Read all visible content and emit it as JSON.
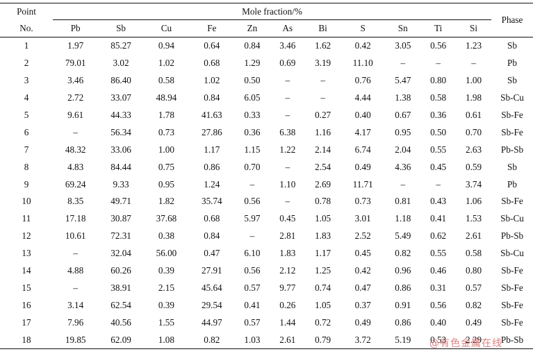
{
  "table": {
    "header": {
      "point": "Point",
      "no": "No.",
      "mole_fraction": "Mole fraction/%",
      "phase": "Phase",
      "elements": [
        "Pb",
        "Sb",
        "Cu",
        "Fe",
        "Zn",
        "As",
        "Bi",
        "S",
        "Sn",
        "Ti",
        "Si"
      ]
    },
    "rows": [
      {
        "no": "1",
        "values": [
          "1.97",
          "85.27",
          "0.94",
          "0.64",
          "0.84",
          "3.46",
          "1.62",
          "0.42",
          "3.05",
          "0.56",
          "1.23"
        ],
        "phase": "Sb"
      },
      {
        "no": "2",
        "values": [
          "79.01",
          "3.02",
          "1.02",
          "0.68",
          "1.29",
          "0.69",
          "3.19",
          "11.10",
          "–",
          "–",
          "–"
        ],
        "phase": "Pb"
      },
      {
        "no": "3",
        "values": [
          "3.46",
          "86.40",
          "0.58",
          "1.02",
          "0.50",
          "–",
          "–",
          "0.76",
          "5.47",
          "0.80",
          "1.00"
        ],
        "phase": "Sb"
      },
      {
        "no": "4",
        "values": [
          "2.72",
          "33.07",
          "48.94",
          "0.84",
          "6.05",
          "–",
          "–",
          "4.44",
          "1.38",
          "0.58",
          "1.98"
        ],
        "phase": "Sb-Cu"
      },
      {
        "no": "5",
        "values": [
          "9.61",
          "44.33",
          "1.78",
          "41.63",
          "0.33",
          "–",
          "0.27",
          "0.40",
          "0.67",
          "0.36",
          "0.61"
        ],
        "phase": "Sb-Fe"
      },
      {
        "no": "6",
        "values": [
          "–",
          "56.34",
          "0.73",
          "27.86",
          "0.36",
          "6.38",
          "1.16",
          "4.17",
          "0.95",
          "0.50",
          "0.70"
        ],
        "phase": "Sb-Fe"
      },
      {
        "no": "7",
        "values": [
          "48.32",
          "33.06",
          "1.00",
          "1.17",
          "1.15",
          "1.22",
          "2.14",
          "6.74",
          "2.04",
          "0.55",
          "2.63"
        ],
        "phase": "Pb-Sb"
      },
      {
        "no": "8",
        "values": [
          "4.83",
          "84.44",
          "0.75",
          "0.86",
          "0.70",
          "–",
          "2.54",
          "0.49",
          "4.36",
          "0.45",
          "0.59"
        ],
        "phase": "Sb"
      },
      {
        "no": "9",
        "values": [
          "69.24",
          "9.33",
          "0.95",
          "1.24",
          "–",
          "1.10",
          "2.69",
          "11.71",
          "–",
          "–",
          "3.74"
        ],
        "phase": "Pb"
      },
      {
        "no": "10",
        "values": [
          "8.35",
          "49.71",
          "1.82",
          "35.74",
          "0.56",
          "–",
          "0.78",
          "0.73",
          "0.81",
          "0.43",
          "1.06"
        ],
        "phase": "Sb-Fe"
      },
      {
        "no": "11",
        "values": [
          "17.18",
          "30.87",
          "37.68",
          "0.68",
          "5.97",
          "0.45",
          "1.05",
          "3.01",
          "1.18",
          "0.41",
          "1.53"
        ],
        "phase": "Sb-Cu"
      },
      {
        "no": "12",
        "values": [
          "10.61",
          "72.31",
          "0.38",
          "0.84",
          "–",
          "2.81",
          "1.83",
          "2.52",
          "5.49",
          "0.62",
          "2.61"
        ],
        "phase": "Pb-Sb"
      },
      {
        "no": "13",
        "values": [
          "–",
          "32.04",
          "56.00",
          "0.47",
          "6.10",
          "1.83",
          "1.17",
          "0.45",
          "0.82",
          "0.55",
          "0.58"
        ],
        "phase": "Sb-Cu"
      },
      {
        "no": "14",
        "values": [
          "4.88",
          "60.26",
          "0.39",
          "27.91",
          "0.56",
          "2.12",
          "1.25",
          "0.42",
          "0.96",
          "0.46",
          "0.80"
        ],
        "phase": "Sb-Fe"
      },
      {
        "no": "15",
        "values": [
          "–",
          "38.91",
          "2.15",
          "45.64",
          "0.57",
          "9.77",
          "0.74",
          "0.47",
          "0.86",
          "0.31",
          "0.57"
        ],
        "phase": "Sb-Fe"
      },
      {
        "no": "16",
        "values": [
          "3.14",
          "62.54",
          "0.39",
          "29.54",
          "0.41",
          "0.26",
          "1.05",
          "0.37",
          "0.91",
          "0.56",
          "0.82"
        ],
        "phase": "Sb-Fe"
      },
      {
        "no": "17",
        "values": [
          "7.96",
          "40.56",
          "1.55",
          "44.97",
          "0.57",
          "1.44",
          "0.72",
          "0.49",
          "0.86",
          "0.40",
          "0.49"
        ],
        "phase": "Sb-Fe"
      },
      {
        "no": "18",
        "values": [
          "19.85",
          "62.09",
          "1.08",
          "0.82",
          "1.03",
          "2.61",
          "0.79",
          "3.72",
          "5.19",
          "0.53",
          "2.29"
        ],
        "phase": "Pb-Sb"
      }
    ]
  },
  "watermark": "@有色金属在线"
}
